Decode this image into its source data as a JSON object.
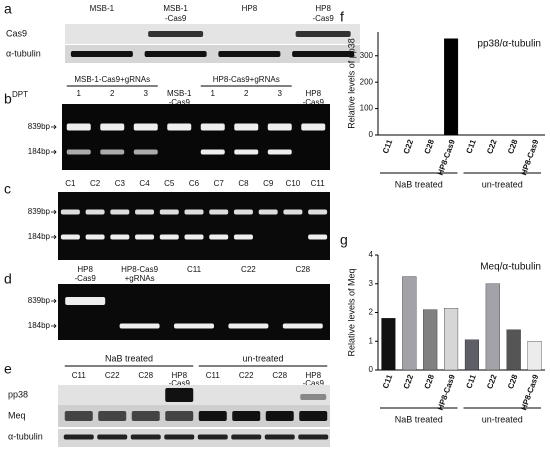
{
  "panels": {
    "a": {
      "label": "a",
      "lanes": [
        [
          "MSB-1"
        ],
        [
          "MSB-1",
          "-Cas9"
        ],
        [
          "HP8"
        ],
        [
          "HP8",
          "-Cas9"
        ]
      ],
      "rows": [
        "Cas9",
        "α-tubulin"
      ]
    },
    "b": {
      "label": "b",
      "axis": "DPT",
      "groups": [
        "MSB-1-Cas9+gRNAs",
        "HP8-Cas9+gRNAs"
      ],
      "lanes": [
        [
          "1"
        ],
        [
          "2"
        ],
        [
          "3"
        ],
        [
          "MSB-1",
          "-Cas9"
        ],
        [
          "1"
        ],
        [
          "2"
        ],
        [
          "3"
        ],
        [
          "HP8",
          "-Cas9"
        ]
      ],
      "markers": [
        "839bp",
        "184bp"
      ]
    },
    "c": {
      "label": "c",
      "lanes": [
        [
          "C1"
        ],
        [
          "C2"
        ],
        [
          "C3"
        ],
        [
          "C4"
        ],
        [
          "C5"
        ],
        [
          "C6"
        ],
        [
          "C7"
        ],
        [
          "C8"
        ],
        [
          "C9"
        ],
        [
          "C10"
        ],
        [
          "C11"
        ]
      ],
      "markers": [
        "839bp",
        "184bp"
      ]
    },
    "d": {
      "label": "d",
      "lanes": [
        [
          "HP8",
          "-Cas9"
        ],
        [
          "HP8-Cas9",
          "+gRNAs"
        ],
        [
          "C11"
        ],
        [
          "C22"
        ],
        [
          "C28"
        ]
      ],
      "markers": [
        "839bp",
        "184bp"
      ]
    },
    "e": {
      "label": "e",
      "groups": [
        "NaB treated",
        "un-treated"
      ],
      "lanes": [
        [
          "C11"
        ],
        [
          "C22"
        ],
        [
          "C28"
        ],
        [
          "HP8",
          "-Cas9"
        ],
        [
          "C11"
        ],
        [
          "C22"
        ],
        [
          "C28"
        ],
        [
          "HP8",
          "-Cas9"
        ]
      ],
      "rows": [
        "pp38",
        "Meq",
        "α-tubulin"
      ]
    }
  },
  "chart_data": [
    {
      "type": "bar",
      "panel": "f",
      "title": "pp38/α-tubulin",
      "y_label": "Relative levels of pp38",
      "categories": [
        "C11",
        "C22",
        "C28",
        "HP8-Cas9",
        "C11",
        "C22",
        "C28",
        "HP8-Cas9"
      ],
      "groups": [
        "NaB treated",
        "un-treated"
      ],
      "values": [
        0,
        0,
        0,
        365,
        0,
        0,
        0,
        1
      ],
      "colors": [
        "#000000",
        "#000000",
        "#000000",
        "#000000",
        "#000000",
        "#000000",
        "#000000",
        "#000000"
      ],
      "ylim": [
        0,
        390
      ],
      "yticks": [
        0,
        100,
        200,
        300
      ]
    },
    {
      "type": "bar",
      "panel": "g",
      "title": "Meq/α-tubulin",
      "y_label": "Relative levels of Meq",
      "categories": [
        "C11",
        "C22",
        "C28",
        "HP8-Cas9",
        "C11",
        "C22",
        "C28",
        "HP8-Cas9"
      ],
      "groups": [
        "NaB treated",
        "un-treated"
      ],
      "values": [
        1.8,
        3.25,
        2.1,
        2.15,
        1.05,
        3.0,
        1.4,
        1.0
      ],
      "colors": [
        "#111111",
        "#a2a2a8",
        "#808080",
        "#d6d6d6",
        "#5e5e66",
        "#a2a2a8",
        "#555555",
        "#ececec"
      ],
      "ylim": [
        0,
        4
      ],
      "yticks": [
        0,
        1,
        2,
        3,
        4
      ]
    }
  ]
}
